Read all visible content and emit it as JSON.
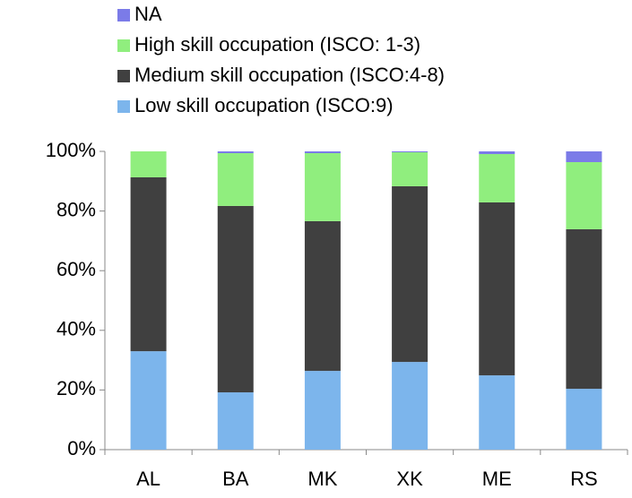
{
  "chart_data": {
    "type": "stacked_bar",
    "categories": [
      "AL",
      "BA",
      "MK",
      "XK",
      "ME",
      "RS"
    ],
    "series": [
      {
        "name": "Low skill occupation (ISCO:9)",
        "color": "#7cb5ec",
        "values": [
          33.0,
          19.2,
          26.4,
          29.4,
          24.9,
          20.4
        ]
      },
      {
        "name": "Medium skill occupation (ISCO:4-8)",
        "color": "#404040",
        "values": [
          58.3,
          62.5,
          50.2,
          58.9,
          58.0,
          53.5
        ]
      },
      {
        "name": "High skill occupation (ISCO: 1-3)",
        "color": "#90ee7e",
        "values": [
          8.7,
          17.7,
          22.8,
          11.4,
          16.2,
          22.5
        ]
      },
      {
        "name": "NA",
        "color": "#7b7be8",
        "values": [
          0,
          0.6,
          0.6,
          0.3,
          0.9,
          3.6
        ]
      }
    ],
    "ylim": [
      0,
      100
    ],
    "yticks": [
      {
        "value": 0,
        "label": "0%"
      },
      {
        "value": 20,
        "label": "20%"
      },
      {
        "value": 40,
        "label": "40%"
      },
      {
        "value": 60,
        "label": "60%"
      },
      {
        "value": 80,
        "label": "80%"
      },
      {
        "value": 100,
        "label": "100%"
      }
    ]
  }
}
